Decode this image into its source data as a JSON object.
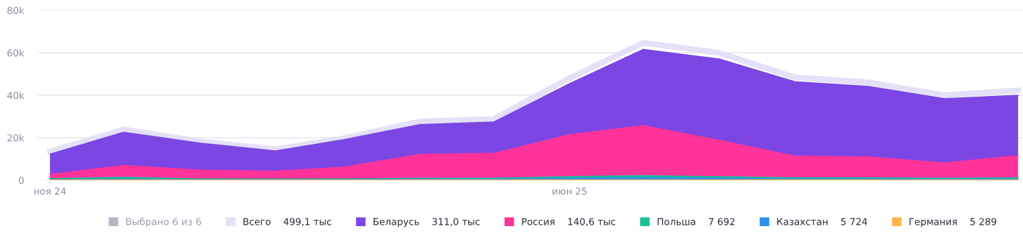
{
  "chart_data": {
    "type": "area",
    "stacked": true,
    "x": [
      "2024-11",
      "2024-12",
      "2025-01",
      "2025-02",
      "2025-03",
      "2025-04",
      "2025-05",
      "2025-06",
      "2025-07",
      "2025-08",
      "2025-09",
      "2025-10",
      "2025-11",
      "2025-12"
    ],
    "series": [
      {
        "name": "Всего    499,1 тыс",
        "type": "line",
        "color": "#e3e0f8",
        "values": [
          13500,
          23900,
          18300,
          14600,
          19800,
          27700,
          28800,
          48100,
          64700,
          60000,
          48400,
          46100,
          40000,
          42300
        ]
      },
      {
        "name": "Германия    5 289",
        "color": "#ffb547",
        "values": [
          400,
          400,
          400,
          400,
          400,
          400,
          400,
          400,
          400,
          400,
          400,
          400,
          400,
          400
        ]
      },
      {
        "name": "Казахстан    5 724",
        "color": "#2f8ff0",
        "values": [
          200,
          300,
          200,
          200,
          200,
          300,
          300,
          800,
          1000,
          800,
          400,
          400,
          300,
          400
        ]
      },
      {
        "name": "Польша    7 692",
        "color": "#1bbf9b",
        "values": [
          400,
          900,
          300,
          200,
          300,
          400,
          500,
          700,
          1000,
          700,
          600,
          600,
          500,
          600
        ]
      },
      {
        "name": "Россия    140,6 тыс",
        "color": "#ff3399",
        "values": [
          2000,
          5600,
          4100,
          3700,
          5500,
          11300,
          11700,
          19800,
          23600,
          17100,
          10200,
          9800,
          7200,
          10400
        ]
      },
      {
        "name": "Беларусь    311,0 тыс",
        "color": "#7b46e3",
        "values": [
          9300,
          15400,
          12500,
          9300,
          12700,
          13800,
          14500,
          23800,
          35600,
          38100,
          34800,
          33000,
          30000,
          28200
        ]
      }
    ],
    "xlim": [
      "2024-10-27",
      "2025-12-03"
    ],
    "xticks": [
      {
        "value": "2024-11",
        "label": "ноя 24"
      },
      {
        "value": "2025-06",
        "label": "июн 25"
      }
    ],
    "ylim": [
      0,
      80000
    ],
    "yticks": [
      {
        "value": 0,
        "label": "0"
      },
      {
        "value": 20000,
        "label": "20k"
      },
      {
        "value": 40000,
        "label": "40k"
      },
      {
        "value": 60000,
        "label": "60k"
      },
      {
        "value": 80000,
        "label": "80k"
      }
    ],
    "grid": "y",
    "legend": "bottom",
    "annotations": [
      "Выбрано 6 из 6"
    ]
  }
}
